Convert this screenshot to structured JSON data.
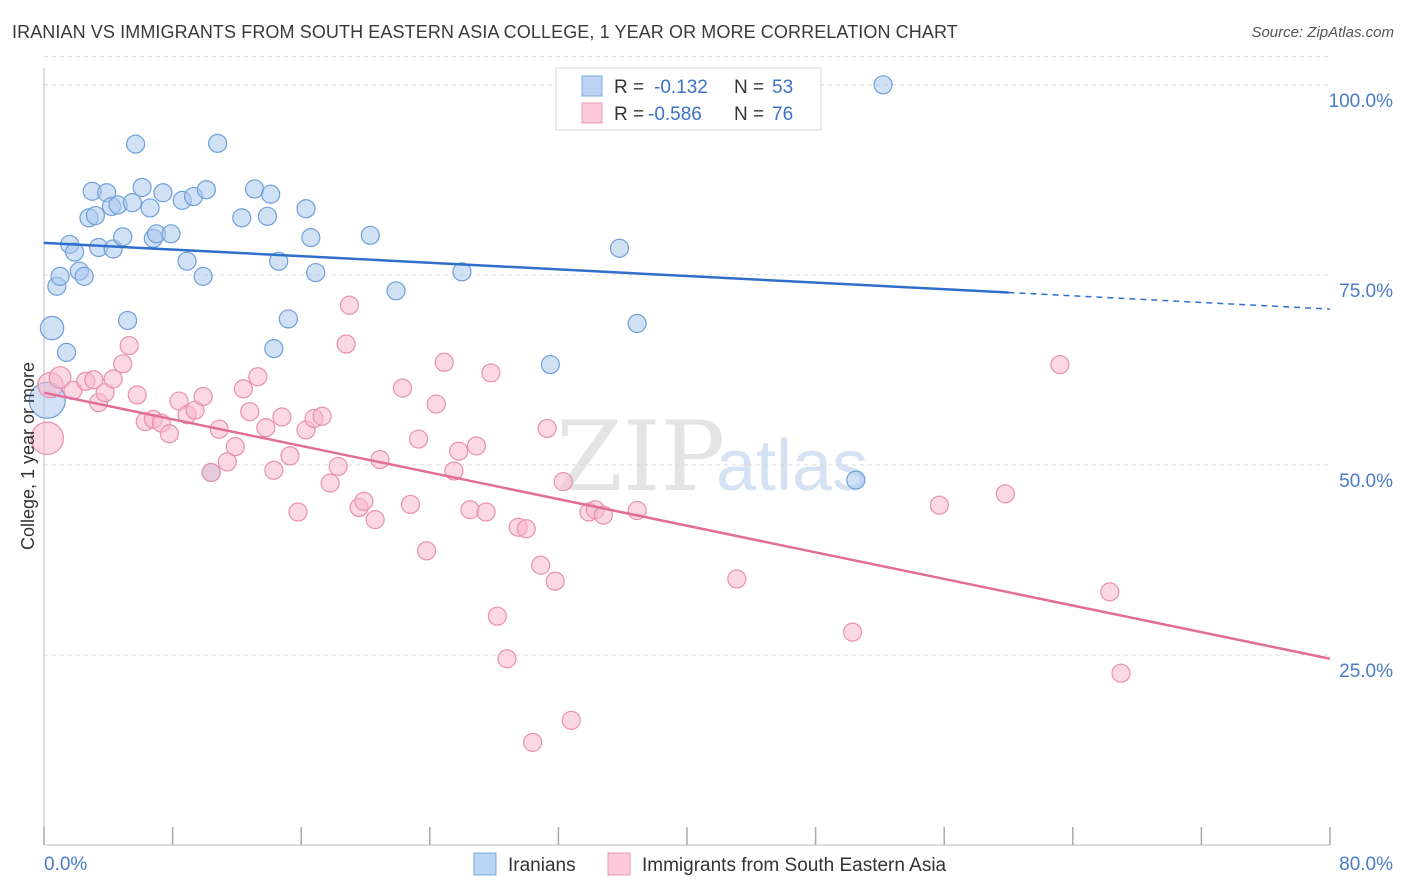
{
  "header": {
    "title": "IRANIAN VS IMMIGRANTS FROM SOUTH EASTERN ASIA COLLEGE, 1 YEAR OR MORE CORRELATION CHART",
    "source": "Source: ZipAtlas.com"
  },
  "watermark": {
    "zip": "ZIP",
    "atlas": "atlas"
  },
  "legend_top": {
    "rows": [
      {
        "r_label": "R =",
        "r_value": "-0.132",
        "n_label": "N =",
        "n_value": "53"
      },
      {
        "r_label": "R =",
        "r_value": "-0.586",
        "n_label": "N =",
        "n_value": "76"
      }
    ]
  },
  "chart_data": {
    "type": "scatter",
    "title": "IRANIAN VS IMMIGRANTS FROM SOUTH EASTERN ASIA COLLEGE, 1 YEAR OR MORE CORRELATION CHART",
    "xlabel": "",
    "ylabel": "College, 1 year or more",
    "xlim": [
      0,
      80
    ],
    "ylim": [
      0,
      103
    ],
    "x_tick_labels": [
      "0.0%",
      "80.0%"
    ],
    "y_ticks": [
      25,
      50,
      75,
      100
    ],
    "y_tick_labels": [
      "25.0%",
      "50.0%",
      "75.0%",
      "100.0%"
    ],
    "grid": true,
    "legend_position": "bottom",
    "series": [
      {
        "name": "Iranians",
        "color": "#a9c8ef",
        "stroke": "#6f9fd8",
        "line_color": "#2f6fca",
        "r": -0.132,
        "n": 53,
        "trend": {
          "x_start": 0,
          "y_start": 79.2,
          "x_solid_end": 60,
          "x_end": 80,
          "y_end": 70.5
        },
        "points": [
          [
            0.2,
            58.5,
            2
          ],
          [
            0.5,
            68,
            1.3
          ],
          [
            0.8,
            73.5,
            1
          ],
          [
            1,
            74.8,
            1
          ],
          [
            1.4,
            64.8,
            1
          ],
          [
            1.6,
            79,
            1
          ],
          [
            1.9,
            78,
            1
          ],
          [
            2.2,
            75.5,
            1
          ],
          [
            2.5,
            74.8,
            1
          ],
          [
            2.8,
            82.5,
            1
          ],
          [
            3.0,
            86,
            1
          ],
          [
            3.2,
            82.8,
            1
          ],
          [
            3.4,
            78.6,
            1
          ],
          [
            3.9,
            85.8,
            1
          ],
          [
            4.2,
            84,
            1
          ],
          [
            4.3,
            78.4,
            1
          ],
          [
            4.6,
            84.2,
            1
          ],
          [
            4.9,
            80,
            1
          ],
          [
            5.2,
            69,
            1
          ],
          [
            5.5,
            84.5,
            1
          ],
          [
            5.7,
            92.2,
            1
          ],
          [
            6.1,
            86.5,
            1
          ],
          [
            6.6,
            83.8,
            1
          ],
          [
            6.8,
            79.8,
            1
          ],
          [
            7.0,
            80.4,
            1
          ],
          [
            7.4,
            85.8,
            1
          ],
          [
            7.9,
            80.4,
            1
          ],
          [
            8.6,
            84.8,
            1
          ],
          [
            8.9,
            76.8,
            1
          ],
          [
            9.3,
            85.3,
            1
          ],
          [
            9.9,
            74.8,
            1
          ],
          [
            10.1,
            86.2,
            1
          ],
          [
            10.4,
            49,
            1
          ],
          [
            10.8,
            92.3,
            1
          ],
          [
            12.3,
            82.5,
            1
          ],
          [
            13.1,
            86.3,
            1
          ],
          [
            13.9,
            82.7,
            1
          ],
          [
            14.1,
            85.6,
            1
          ],
          [
            14.3,
            65.3,
            1
          ],
          [
            14.6,
            76.8,
            1
          ],
          [
            15.2,
            69.2,
            1
          ],
          [
            16.3,
            83.7,
            1
          ],
          [
            16.6,
            79.9,
            1
          ],
          [
            16.9,
            75.3,
            1
          ],
          [
            20.3,
            80.2,
            1
          ],
          [
            21.9,
            72.9,
            1
          ],
          [
            26.0,
            75.4,
            1
          ],
          [
            31.5,
            63.2,
            1
          ],
          [
            35.8,
            78.5,
            1
          ],
          [
            36.9,
            68.6,
            1
          ],
          [
            50.5,
            48,
            1
          ],
          [
            52.2,
            100,
            1
          ]
        ]
      },
      {
        "name": "Immigrants from South Eastern Asia",
        "color": "#f7b8cd",
        "stroke": "#e890ad",
        "line_color": "#e06e98",
        "r": -0.586,
        "n": 76,
        "trend": {
          "x_start": 0,
          "y_start": 59.5,
          "x_solid_end": 80,
          "x_end": 80,
          "y_end": 24.5
        },
        "points": [
          [
            0.2,
            53.5,
            1.8
          ],
          [
            0.4,
            60.5,
            1.4
          ],
          [
            1.0,
            61.5,
            1.2
          ],
          [
            1.8,
            59.8,
            1
          ],
          [
            2.6,
            61,
            1
          ],
          [
            3.1,
            61.2,
            1
          ],
          [
            3.4,
            58.2,
            1
          ],
          [
            3.8,
            59.5,
            1
          ],
          [
            4.3,
            61.3,
            1
          ],
          [
            4.9,
            63.3,
            1
          ],
          [
            5.3,
            65.7,
            1
          ],
          [
            5.8,
            59.2,
            1
          ],
          [
            6.3,
            55.7,
            1
          ],
          [
            6.8,
            56,
            1
          ],
          [
            7.3,
            55.5,
            1
          ],
          [
            7.8,
            54.1,
            1
          ],
          [
            8.4,
            58.4,
            1
          ],
          [
            8.9,
            56.6,
            1
          ],
          [
            9.4,
            57.2,
            1
          ],
          [
            9.9,
            59,
            1
          ],
          [
            10.4,
            49,
            1
          ],
          [
            10.9,
            54.7,
            1
          ],
          [
            11.4,
            50.4,
            1
          ],
          [
            11.9,
            52.4,
            1
          ],
          [
            12.4,
            60,
            1
          ],
          [
            12.8,
            57,
            1
          ],
          [
            13.3,
            61.6,
            1
          ],
          [
            13.8,
            54.9,
            1
          ],
          [
            14.3,
            49.3,
            1
          ],
          [
            14.8,
            56.3,
            1
          ],
          [
            15.3,
            51.2,
            1
          ],
          [
            15.8,
            43.8,
            1
          ],
          [
            16.3,
            54.6,
            1
          ],
          [
            16.8,
            56.1,
            1
          ],
          [
            17.3,
            56.4,
            1
          ],
          [
            17.8,
            47.6,
            1
          ],
          [
            18.3,
            49.8,
            1
          ],
          [
            18.8,
            65.9,
            1
          ],
          [
            19.0,
            71,
            1
          ],
          [
            19.6,
            44.4,
            1
          ],
          [
            19.9,
            45.2,
            1
          ],
          [
            20.6,
            42.8,
            1
          ],
          [
            20.9,
            50.7,
            1
          ],
          [
            22.3,
            60.1,
            1
          ],
          [
            22.8,
            44.8,
            1
          ],
          [
            23.3,
            53.4,
            1
          ],
          [
            23.8,
            38.7,
            1
          ],
          [
            24.4,
            58,
            1
          ],
          [
            24.9,
            63.5,
            1
          ],
          [
            25.5,
            49.2,
            1
          ],
          [
            25.8,
            51.8,
            1
          ],
          [
            26.5,
            44.1,
            1
          ],
          [
            26.9,
            52.5,
            1
          ],
          [
            27.5,
            43.8,
            1
          ],
          [
            27.8,
            62.1,
            1
          ],
          [
            28.2,
            30.1,
            1
          ],
          [
            28.8,
            24.5,
            1
          ],
          [
            29.5,
            41.8,
            1
          ],
          [
            30.0,
            41.6,
            1
          ],
          [
            30.4,
            13.5,
            1
          ],
          [
            30.9,
            36.8,
            1
          ],
          [
            31.3,
            54.8,
            1
          ],
          [
            31.8,
            34.7,
            1
          ],
          [
            32.3,
            47.8,
            1
          ],
          [
            32.8,
            16.4,
            1
          ],
          [
            33.9,
            43.8,
            1
          ],
          [
            34.3,
            44.1,
            1
          ],
          [
            34.8,
            43.4,
            1
          ],
          [
            36.9,
            44,
            1
          ],
          [
            43.1,
            35,
            1
          ],
          [
            50.3,
            28,
            1
          ],
          [
            55.7,
            44.7,
            1
          ],
          [
            59.8,
            46.2,
            1
          ],
          [
            63.2,
            63.2,
            1
          ],
          [
            66.3,
            33.3,
            1
          ],
          [
            67.0,
            22.6,
            1
          ]
        ]
      }
    ]
  }
}
